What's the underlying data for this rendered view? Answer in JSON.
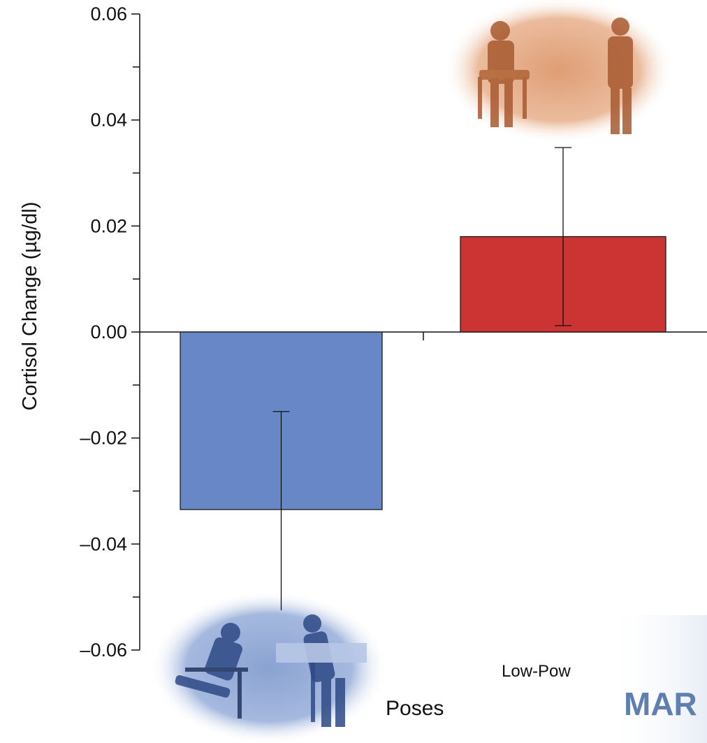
{
  "chart_data": {
    "type": "bar",
    "ylabel": "Cortisol Change (µg/dl)",
    "ylim": [
      -0.06,
      0.06
    ],
    "yticks": [
      0.06,
      0.04,
      0.02,
      0.0,
      -0.02,
      -0.04,
      -0.06
    ],
    "ytick_labels": [
      "0.06",
      "0.04",
      "0.02",
      "0.00",
      "–0.02",
      "–0.04",
      "–0.06"
    ],
    "minor_yticks": [
      0.05,
      0.03,
      0.01,
      -0.01,
      -0.03,
      -0.05
    ],
    "bars": [
      {
        "value": -0.0335,
        "error_low": -0.0525,
        "error_high": -0.015,
        "color": "#6787c6",
        "edge": "#111111"
      },
      {
        "value": 0.018,
        "error_low": 0.0012,
        "error_high": 0.0348,
        "color": "#cc3333",
        "edge": "#111111"
      }
    ],
    "category_labels": [
      "Poses",
      "Low-Pow"
    ]
  },
  "watermark": {
    "text": "MAR",
    "color": "#5f7fb0"
  },
  "colors": {
    "high_power_photo": "#6f8fc8",
    "low_power_photo": "#d98c5c"
  }
}
